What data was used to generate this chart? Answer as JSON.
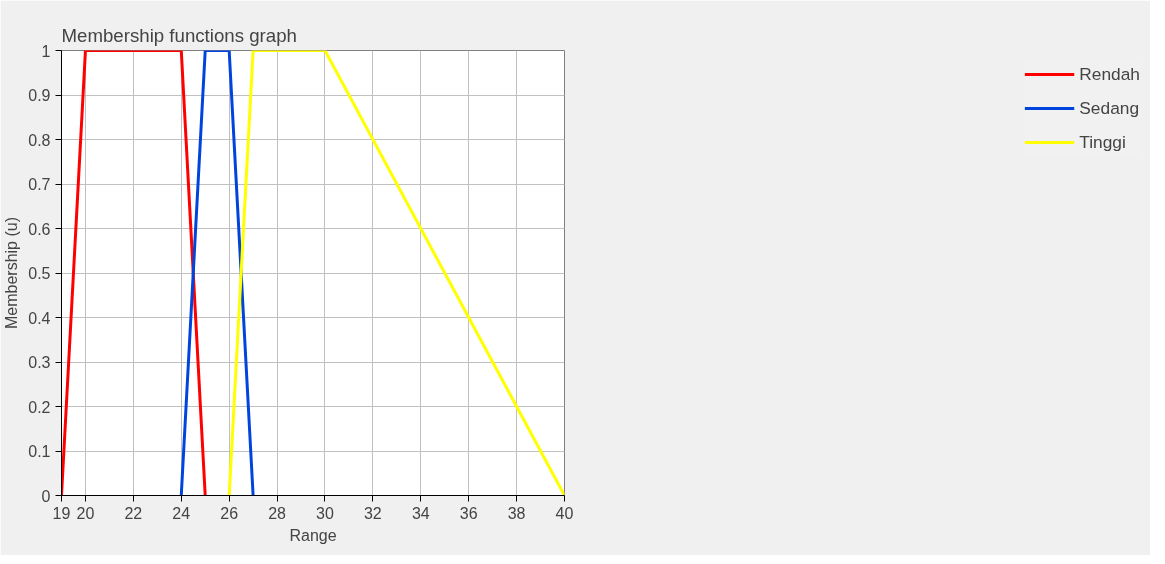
{
  "chart_data": {
    "type": "line",
    "title": "Membership functions graph",
    "xlabel": "Range",
    "ylabel": "Membership (u)",
    "series": [
      {
        "name": "Rendah",
        "color": "#ff0000",
        "x": [
          19,
          20,
          24,
          25
        ],
        "values": [
          0,
          1,
          1,
          0
        ]
      },
      {
        "name": "Sedang",
        "color": "#0044dd",
        "x": [
          24,
          25,
          26,
          27
        ],
        "values": [
          0,
          1,
          1,
          0
        ]
      },
      {
        "name": "Tinggi",
        "color": "#ffff00",
        "x": [
          26,
          27,
          30,
          40
        ],
        "values": [
          0,
          1,
          1,
          0
        ]
      }
    ],
    "xlim": [
      19,
      40
    ],
    "xticks": [
      19,
      20,
      22,
      24,
      26,
      28,
      30,
      32,
      34,
      36,
      38,
      40
    ],
    "ylim": [
      0,
      1
    ],
    "yticks": [
      0,
      0.1,
      0.2,
      0.3,
      0.4,
      0.5,
      0.6,
      0.7,
      0.8,
      0.9,
      1
    ],
    "grid": true,
    "legend": "right",
    "marker": "none",
    "line_style": "solid"
  }
}
